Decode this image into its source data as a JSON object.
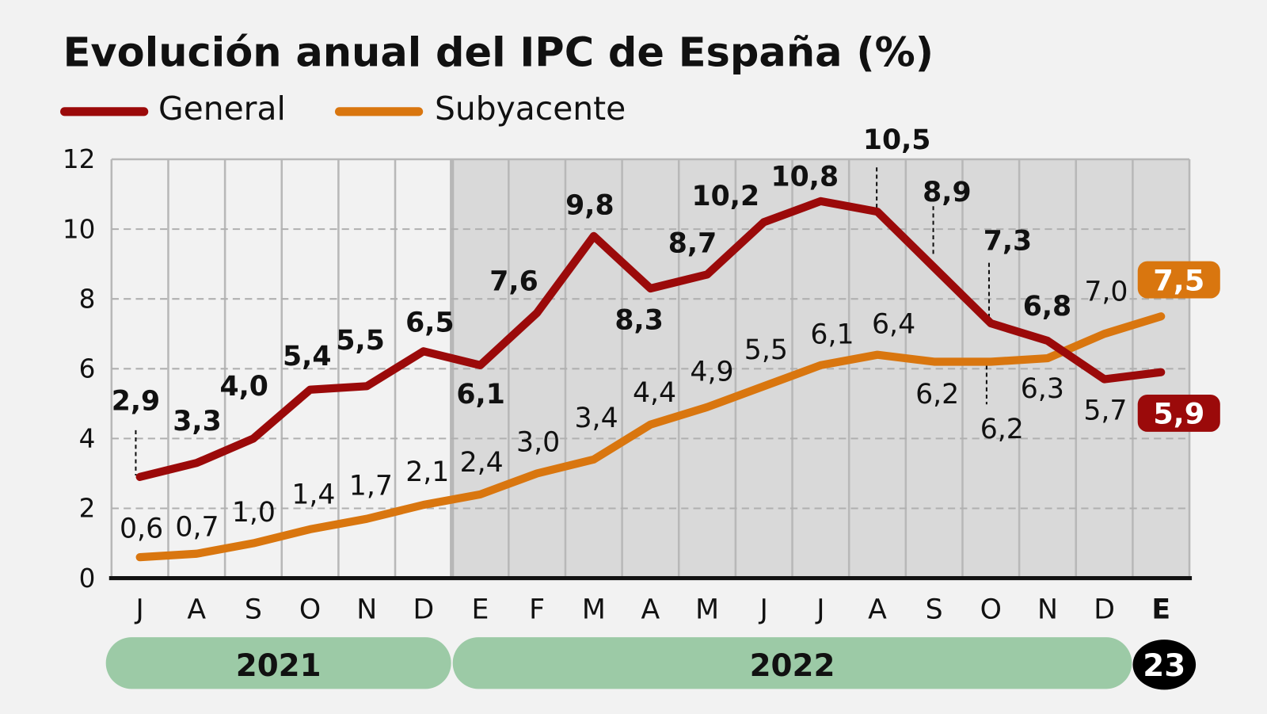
{
  "chart_data": {
    "type": "line",
    "title": "Evolución anual del IPC de España (%)",
    "categories": [
      "J",
      "A",
      "S",
      "O",
      "N",
      "D",
      "E",
      "F",
      "M",
      "A",
      "M",
      "J",
      "J",
      "A",
      "S",
      "O",
      "N",
      "D",
      "E"
    ],
    "year_groups": [
      {
        "label": "2021",
        "months": 6
      },
      {
        "label": "2022",
        "months": 12
      },
      {
        "label": "23",
        "months": 1
      }
    ],
    "series": [
      {
        "name": "General",
        "color": "#9b0a0a",
        "values": [
          2.9,
          3.3,
          4.0,
          5.4,
          5.5,
          6.5,
          6.1,
          7.6,
          9.8,
          8.3,
          8.7,
          10.2,
          10.8,
          10.5,
          8.9,
          7.3,
          6.8,
          5.7,
          5.9
        ],
        "labels": [
          "2,9",
          "3,3",
          "4,0",
          "5,4",
          "5,5",
          "6,5",
          "6,1",
          "7,6",
          "9,8",
          "8,3",
          "8,7",
          "10,2",
          "10,8",
          "10,5",
          "8,9",
          "7,3",
          "6,8",
          "5,7",
          "5,9"
        ]
      },
      {
        "name": "Subyacente",
        "color": "#d9760f",
        "values": [
          0.6,
          0.7,
          1.0,
          1.4,
          1.7,
          2.1,
          2.4,
          3.0,
          3.4,
          4.4,
          4.9,
          5.5,
          6.1,
          6.4,
          6.2,
          6.2,
          6.3,
          7.0,
          7.5
        ],
        "labels": [
          "0,6",
          "0,7",
          "1,0",
          "1,4",
          "1,7",
          "2,1",
          "2,4",
          "3,0",
          "3,4",
          "4,4",
          "4,9",
          "5,5",
          "6,1",
          "6,4",
          "6,2",
          "6,2",
          "6,3",
          "7,0",
          "7,5"
        ]
      }
    ],
    "ylim": [
      0,
      12
    ],
    "yticks": [
      "0",
      "2",
      "4",
      "6",
      "8",
      "10",
      "12"
    ],
    "grid": true,
    "legend": "top-left",
    "shaded_period": "2022 onward",
    "colors": {
      "background": "#f2f2f2",
      "shaded": "#d9d9d9",
      "year_bar": "#9ccaa6",
      "last_year_badge": "#000000"
    }
  }
}
